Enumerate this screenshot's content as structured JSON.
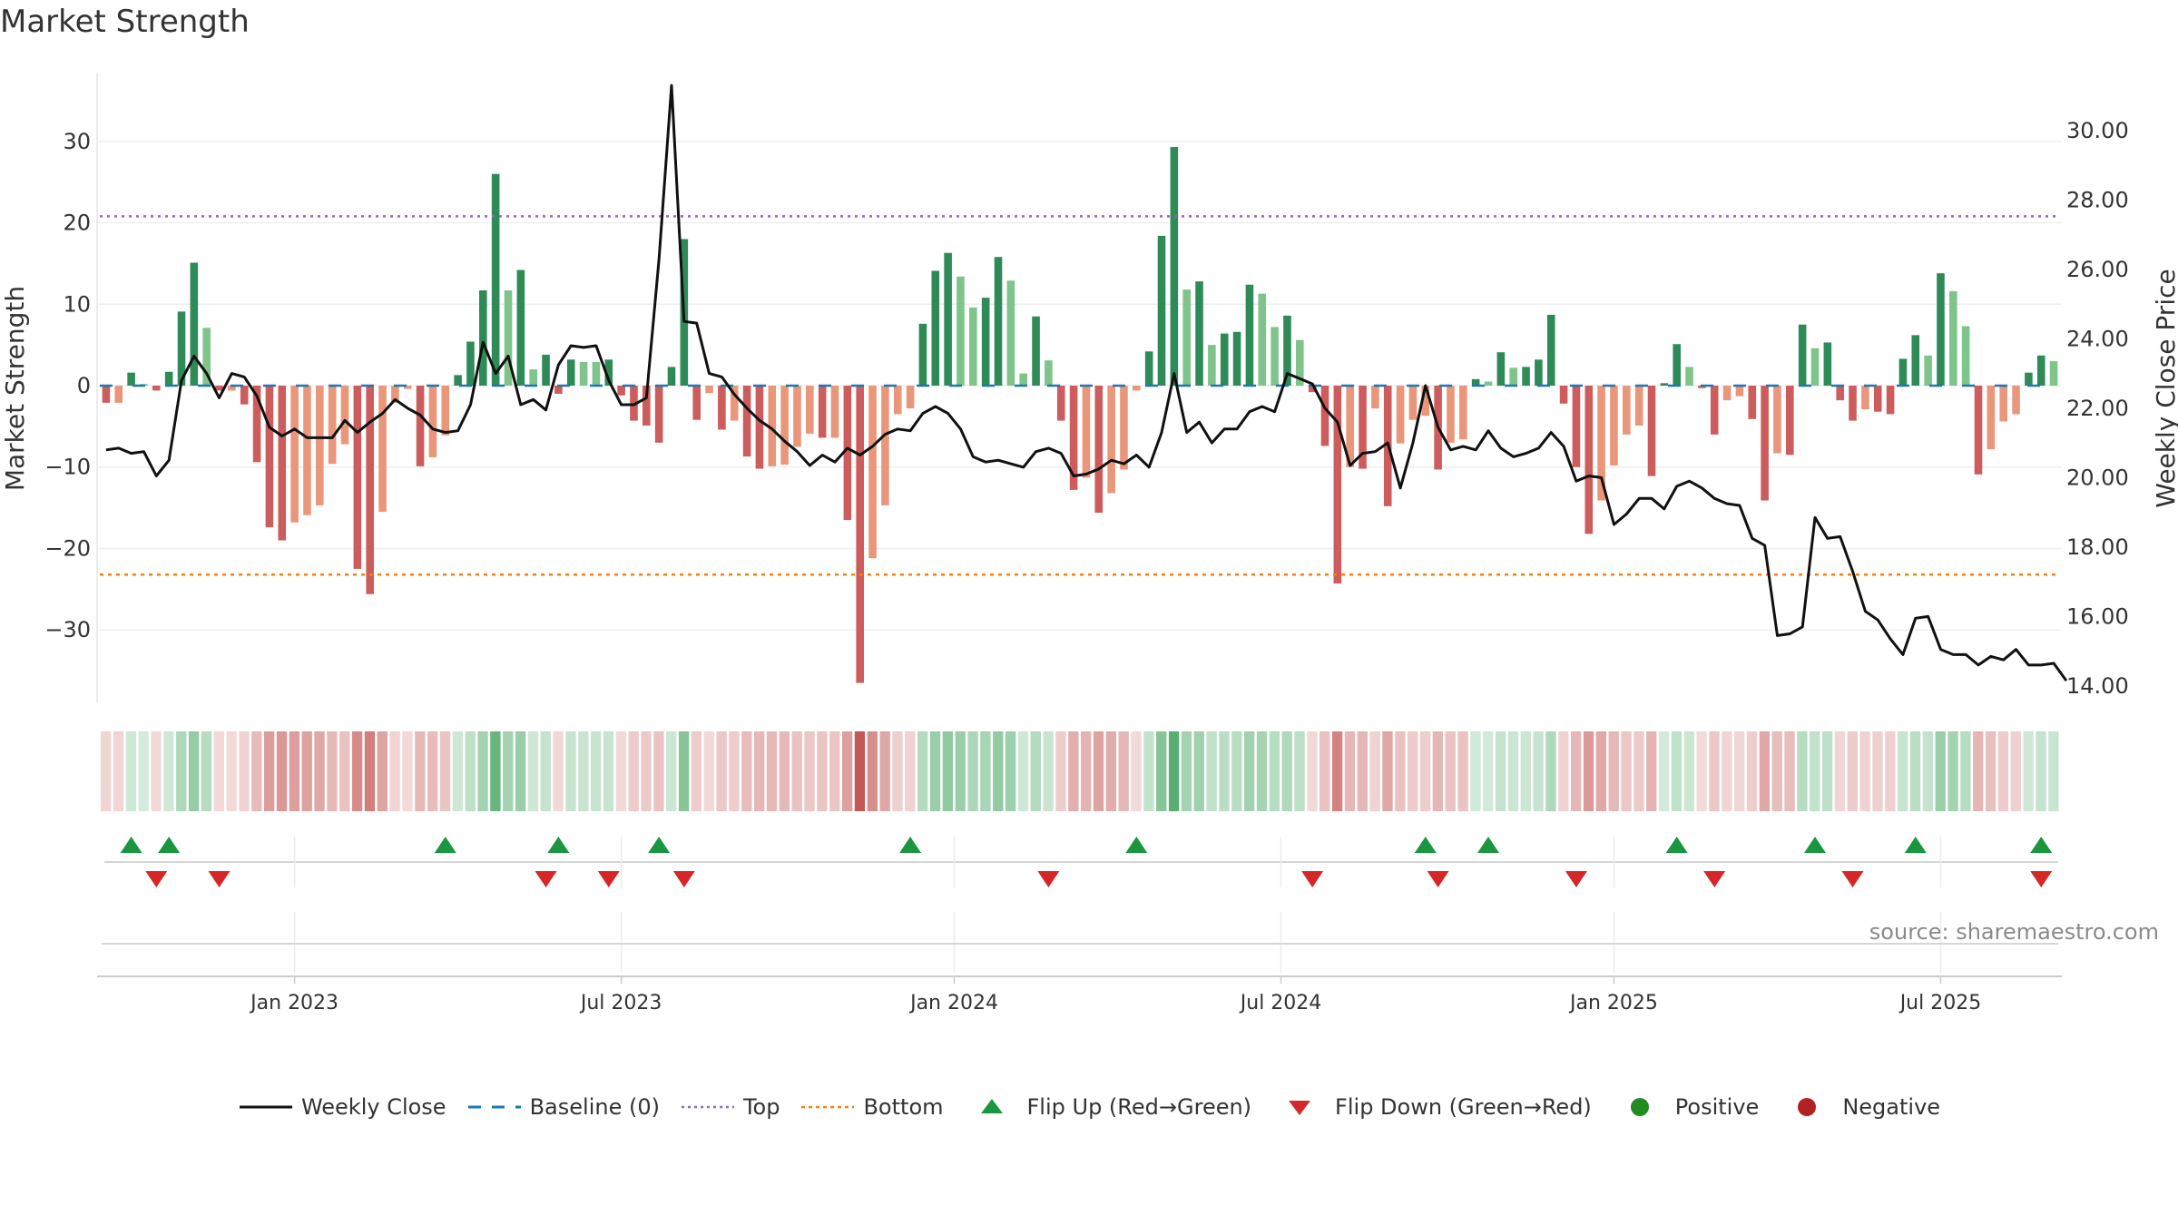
{
  "chart_data": {
    "type": "bar",
    "title": "Market Strength",
    "ylabel_left": "Market Strength",
    "ylabel_right": "Weekly Close Price",
    "ylim_left": [
      -39,
      39
    ],
    "ylim_right": [
      13.5,
      31.8
    ],
    "yticks_left": [
      30,
      20,
      10,
      0,
      -10,
      -20,
      -30
    ],
    "ytick_labels_left": [
      "30",
      "20",
      "10",
      "0",
      "−10",
      "−20",
      "−30"
    ],
    "yticks_right": [
      30,
      28,
      26,
      24,
      22,
      20,
      18,
      16,
      14
    ],
    "ytick_labels_right": [
      "30.00",
      "28.00",
      "26.00",
      "24.00",
      "22.00",
      "20.00",
      "18.00",
      "16.00",
      "14.00"
    ],
    "x_ticks": [
      {
        "label": "Jan 2023",
        "week": 15
      },
      {
        "label": "Jul 2023",
        "week": 41
      },
      {
        "label": "Jan 2024",
        "week": 67.5
      },
      {
        "label": "Jul 2024",
        "week": 93.5
      },
      {
        "label": "Jan 2025",
        "week": 120
      },
      {
        "label": "Jul 2025",
        "week": 146
      }
    ],
    "top_line": 20.8,
    "bottom_line": -23.2,
    "baseline": 0,
    "strength": [
      -2.1,
      -2.1,
      1.6,
      0.2,
      -0.6,
      1.7,
      9.1,
      15.1,
      7.1,
      -0.6,
      -0.6,
      -2.3,
      -9.4,
      -17.4,
      -19.0,
      -16.8,
      -15.9,
      -14.7,
      -9.6,
      -7.2,
      -22.5,
      -25.6,
      -15.5,
      -2.1,
      -0.4,
      -9.9,
      -8.8,
      -6.1,
      1.3,
      5.4,
      11.7,
      26.0,
      11.7,
      14.2,
      2.0,
      3.8,
      -1.0,
      3.2,
      2.9,
      2.9,
      3.2,
      -1.2,
      -4.3,
      -4.9,
      -7.0,
      2.3,
      18.0,
      -4.2,
      -0.9,
      -5.4,
      -4.3,
      -8.7,
      -10.2,
      -9.9,
      -9.7,
      -7.5,
      -5.9,
      -6.4,
      -6.4,
      -16.5,
      -36.5,
      -21.2,
      -14.7,
      -3.5,
      -2.8,
      7.6,
      14.1,
      16.3,
      13.4,
      9.6,
      10.8,
      15.8,
      12.9,
      1.5,
      8.5,
      3.1,
      -4.3,
      -12.8,
      -11.3,
      -15.6,
      -13.2,
      -10.3,
      -0.6,
      4.2,
      18.4,
      29.3,
      11.8,
      12.8,
      5.0,
      6.4,
      6.6,
      12.4,
      11.3,
      7.2,
      8.6,
      5.6,
      -0.8,
      -7.4,
      -24.3,
      -10.0,
      -10.2,
      -2.8,
      -14.8,
      -7.1,
      -4.2,
      -3.7,
      -10.3,
      -7.0,
      -6.6,
      0.8,
      0.5,
      4.1,
      2.2,
      2.3,
      3.2,
      8.7,
      -2.2,
      -10.0,
      -18.2,
      -14.1,
      -9.8,
      -6.0,
      -4.9,
      -11.1,
      0.3,
      5.1,
      2.3,
      -0.3,
      -6.0,
      -1.8,
      -1.3,
      -4.1,
      -14.1,
      -8.3,
      -8.5,
      7.5,
      4.6,
      5.3,
      -1.8,
      -4.3,
      -2.9,
      -3.2,
      -3.5,
      3.3,
      6.2,
      3.7,
      13.8,
      11.6,
      7.3,
      -10.9,
      -7.8,
      -4.4,
      -3.5,
      1.6,
      3.7,
      3.0
    ],
    "weekly_close": [
      20.8,
      20.85,
      20.7,
      20.75,
      20.05,
      20.5,
      22.8,
      23.5,
      23.0,
      22.3,
      23.0,
      22.9,
      22.35,
      21.45,
      21.2,
      21.4,
      21.15,
      21.15,
      21.15,
      21.65,
      21.3,
      21.6,
      21.85,
      22.25,
      22.0,
      21.8,
      21.4,
      21.3,
      21.35,
      22.1,
      23.9,
      23.0,
      23.5,
      22.1,
      22.25,
      21.95,
      23.25,
      23.8,
      23.75,
      23.8,
      22.8,
      22.1,
      22.1,
      22.3,
      26.3,
      31.3,
      24.5,
      24.45,
      23.0,
      22.9,
      22.4,
      22.0,
      21.65,
      21.4,
      21.05,
      20.75,
      20.35,
      20.65,
      20.45,
      20.85,
      20.65,
      20.9,
      21.25,
      21.4,
      21.35,
      21.85,
      22.05,
      21.85,
      21.4,
      20.6,
      20.45,
      20.5,
      20.4,
      20.3,
      20.75,
      20.85,
      20.7,
      20.05,
      20.1,
      20.25,
      20.5,
      20.4,
      20.65,
      20.3,
      21.3,
      23.0,
      21.3,
      21.6,
      21.0,
      21.4,
      21.4,
      21.9,
      22.05,
      21.9,
      23.0,
      22.85,
      22.7,
      22.0,
      21.6,
      20.35,
      20.7,
      20.75,
      21.0,
      19.7,
      21.0,
      22.65,
      21.45,
      20.8,
      20.9,
      20.8,
      21.35,
      20.85,
      20.6,
      20.7,
      20.85,
      21.3,
      20.9,
      19.9,
      20.05,
      20.0,
      18.65,
      18.95,
      19.4,
      19.4,
      19.1,
      19.75,
      19.9,
      19.7,
      19.4,
      19.25,
      19.2,
      18.25,
      18.05,
      15.45,
      15.5,
      15.7,
      18.85,
      18.25,
      18.3,
      17.3,
      16.15,
      15.9,
      15.35,
      14.9,
      15.95,
      16.0,
      15.05,
      14.9,
      14.9,
      14.6,
      14.85,
      14.75,
      15.05,
      14.6,
      14.6,
      14.65,
      14.15
    ],
    "flip_up_weeks": [
      2,
      5,
      27,
      36,
      44,
      64,
      82,
      105,
      110,
      125,
      136,
      144,
      154
    ],
    "flip_down_weeks": [
      4,
      9,
      35,
      40,
      46,
      75,
      96,
      106,
      117,
      128,
      139,
      154
    ],
    "source": "source: sharemaestro.com",
    "colors": {
      "strong_pos": "#2e8b57",
      "weak_pos": "#7fc48a",
      "strong_neg": "#cd5c5c",
      "weak_neg": "#e9967a",
      "price_line": "#111111",
      "baseline": "#1f77b4",
      "top": "#9467bd",
      "bottom": "#ff7f0e",
      "flip_up": "#1a9641",
      "flip_down": "#d62728",
      "positive": "#228b22",
      "negative": "#b22222"
    },
    "legend": [
      {
        "label": "Weekly Close",
        "kind": "line"
      },
      {
        "label": "Baseline (0)",
        "kind": "dash"
      },
      {
        "label": "Top",
        "kind": "dot-top"
      },
      {
        "label": "Bottom",
        "kind": "dot-bottom"
      },
      {
        "label": "Flip Up (Red→Green)",
        "kind": "tri-up"
      },
      {
        "label": "Flip Down (Green→Red)",
        "kind": "tri-down"
      },
      {
        "label": "Positive",
        "kind": "circle-pos"
      },
      {
        "label": "Negative",
        "kind": "circle-neg"
      }
    ]
  }
}
